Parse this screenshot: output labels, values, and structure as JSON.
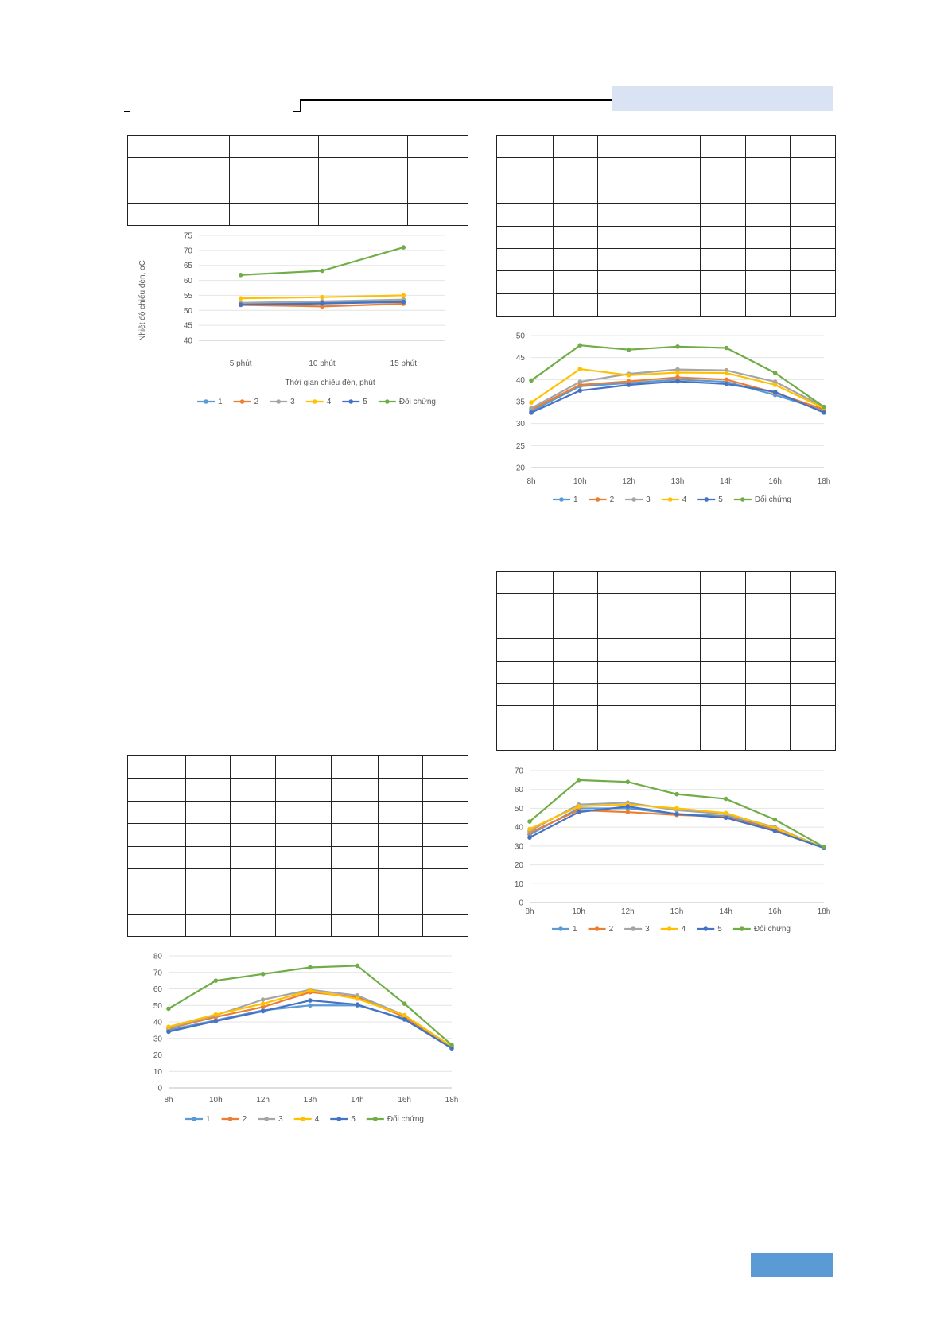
{
  "colors": {
    "series": [
      "#5b9bd5",
      "#ed7d31",
      "#a5a5a5",
      "#ffc000",
      "#4472c4",
      "#70ad47"
    ],
    "header_band": "#dae3f3",
    "footer_bar": "#5b9bd5",
    "footer_line": "#5b9bd5"
  },
  "tables": {
    "t1": {
      "rows": 4,
      "cols": 7
    },
    "t2": {
      "rows": 8,
      "cols": 7
    },
    "t3": {
      "rows": 8,
      "cols": 7
    },
    "t4": {
      "rows": 8,
      "cols": 7
    }
  },
  "chart_data": [
    {
      "id": "c1",
      "type": "line",
      "categories": [
        "5 phút",
        "10 phút",
        "15 phút"
      ],
      "series": [
        {
          "name": "1",
          "values": [
            52.2,
            52.6,
            53.2
          ]
        },
        {
          "name": "2",
          "values": [
            51.8,
            51.3,
            52.2
          ]
        },
        {
          "name": "3",
          "values": [
            52.5,
            53.0,
            53.6
          ]
        },
        {
          "name": "4",
          "values": [
            54.0,
            54.4,
            55.0
          ]
        },
        {
          "name": "5",
          "values": [
            51.9,
            52.3,
            52.8
          ]
        },
        {
          "name": "Đối chứng",
          "values": [
            61.8,
            63.2,
            71.0
          ]
        }
      ],
      "xlabel": "Thời gian chiếu đèn, phút",
      "ylabel": "Nhiệt độ chiếu đèn, oC",
      "ylim": [
        40,
        75
      ],
      "yticks": [
        "40",
        "45",
        "50",
        "55",
        "60",
        "65",
        "70",
        "75"
      ],
      "grid": true,
      "legend": "bottom"
    },
    {
      "id": "c2",
      "type": "line",
      "categories": [
        "8h",
        "10h",
        "12h",
        "13h",
        "14h",
        "16h",
        "18h"
      ],
      "series": [
        {
          "name": "1",
          "values": [
            32.8,
            38.5,
            39.2,
            40.0,
            39.5,
            36.5,
            33.0
          ]
        },
        {
          "name": "2",
          "values": [
            33.2,
            38.8,
            39.6,
            40.5,
            40.0,
            37.0,
            33.2
          ]
        },
        {
          "name": "3",
          "values": [
            33.5,
            39.5,
            41.3,
            42.3,
            42.1,
            39.5,
            33.8
          ]
        },
        {
          "name": "4",
          "values": [
            34.8,
            42.4,
            41.0,
            41.6,
            41.5,
            38.8,
            33.5
          ]
        },
        {
          "name": "5",
          "values": [
            32.5,
            37.5,
            38.8,
            39.6,
            39.0,
            37.2,
            32.5
          ]
        },
        {
          "name": "Đối chứng",
          "values": [
            39.8,
            47.8,
            46.8,
            47.5,
            47.2,
            41.5,
            33.8
          ]
        }
      ],
      "ylim": [
        20,
        50
      ],
      "yticks": [
        "20",
        "25",
        "30",
        "35",
        "40",
        "45",
        "50"
      ],
      "grid": true,
      "legend": "bottom"
    },
    {
      "id": "c3",
      "type": "line",
      "categories": [
        "8h",
        "10h",
        "12h",
        "13h",
        "14h",
        "16h",
        "18h"
      ],
      "series": [
        {
          "name": "1",
          "values": [
            36,
            50,
            50,
            47,
            46,
            39,
            29
          ]
        },
        {
          "name": "2",
          "values": [
            37,
            49,
            48,
            46.5,
            45.5,
            38.5,
            29
          ]
        },
        {
          "name": "3",
          "values": [
            38,
            52,
            53,
            49,
            47,
            40,
            29
          ]
        },
        {
          "name": "4",
          "values": [
            39,
            51,
            52,
            50,
            47.5,
            39.5,
            29
          ]
        },
        {
          "name": "5",
          "values": [
            34.5,
            48,
            51,
            47,
            45,
            38,
            29
          ]
        },
        {
          "name": "Đối chứng",
          "values": [
            43,
            65,
            64,
            57.5,
            55,
            44,
            29.5
          ]
        }
      ],
      "ylim": [
        0,
        70
      ],
      "yticks": [
        "0",
        "10",
        "20",
        "30",
        "40",
        "50",
        "60",
        "70"
      ],
      "grid": true,
      "legend": "bottom"
    },
    {
      "id": "c4",
      "type": "line",
      "categories": [
        "8h",
        "10h",
        "12h",
        "13h",
        "14h",
        "16h",
        "18h"
      ],
      "series": [
        {
          "name": "1",
          "values": [
            35,
            41,
            47,
            50,
            50,
            42,
            25
          ]
        },
        {
          "name": "2",
          "values": [
            36,
            43,
            49,
            58,
            55,
            43,
            25
          ]
        },
        {
          "name": "3",
          "values": [
            36.5,
            44,
            53.5,
            59.5,
            56,
            44,
            25
          ]
        },
        {
          "name": "4",
          "values": [
            37,
            44.5,
            51,
            59,
            54,
            44,
            25
          ]
        },
        {
          "name": "5",
          "values": [
            34,
            40.5,
            46.5,
            53,
            50.5,
            41.5,
            24
          ]
        },
        {
          "name": "Đối chứng",
          "values": [
            48,
            65,
            69,
            73,
            74,
            51,
            26
          ]
        }
      ],
      "ylim": [
        0,
        80
      ],
      "yticks": [
        "0",
        "10",
        "20",
        "30",
        "40",
        "50",
        "60",
        "70",
        "80"
      ],
      "grid": true,
      "legend": "bottom"
    }
  ]
}
